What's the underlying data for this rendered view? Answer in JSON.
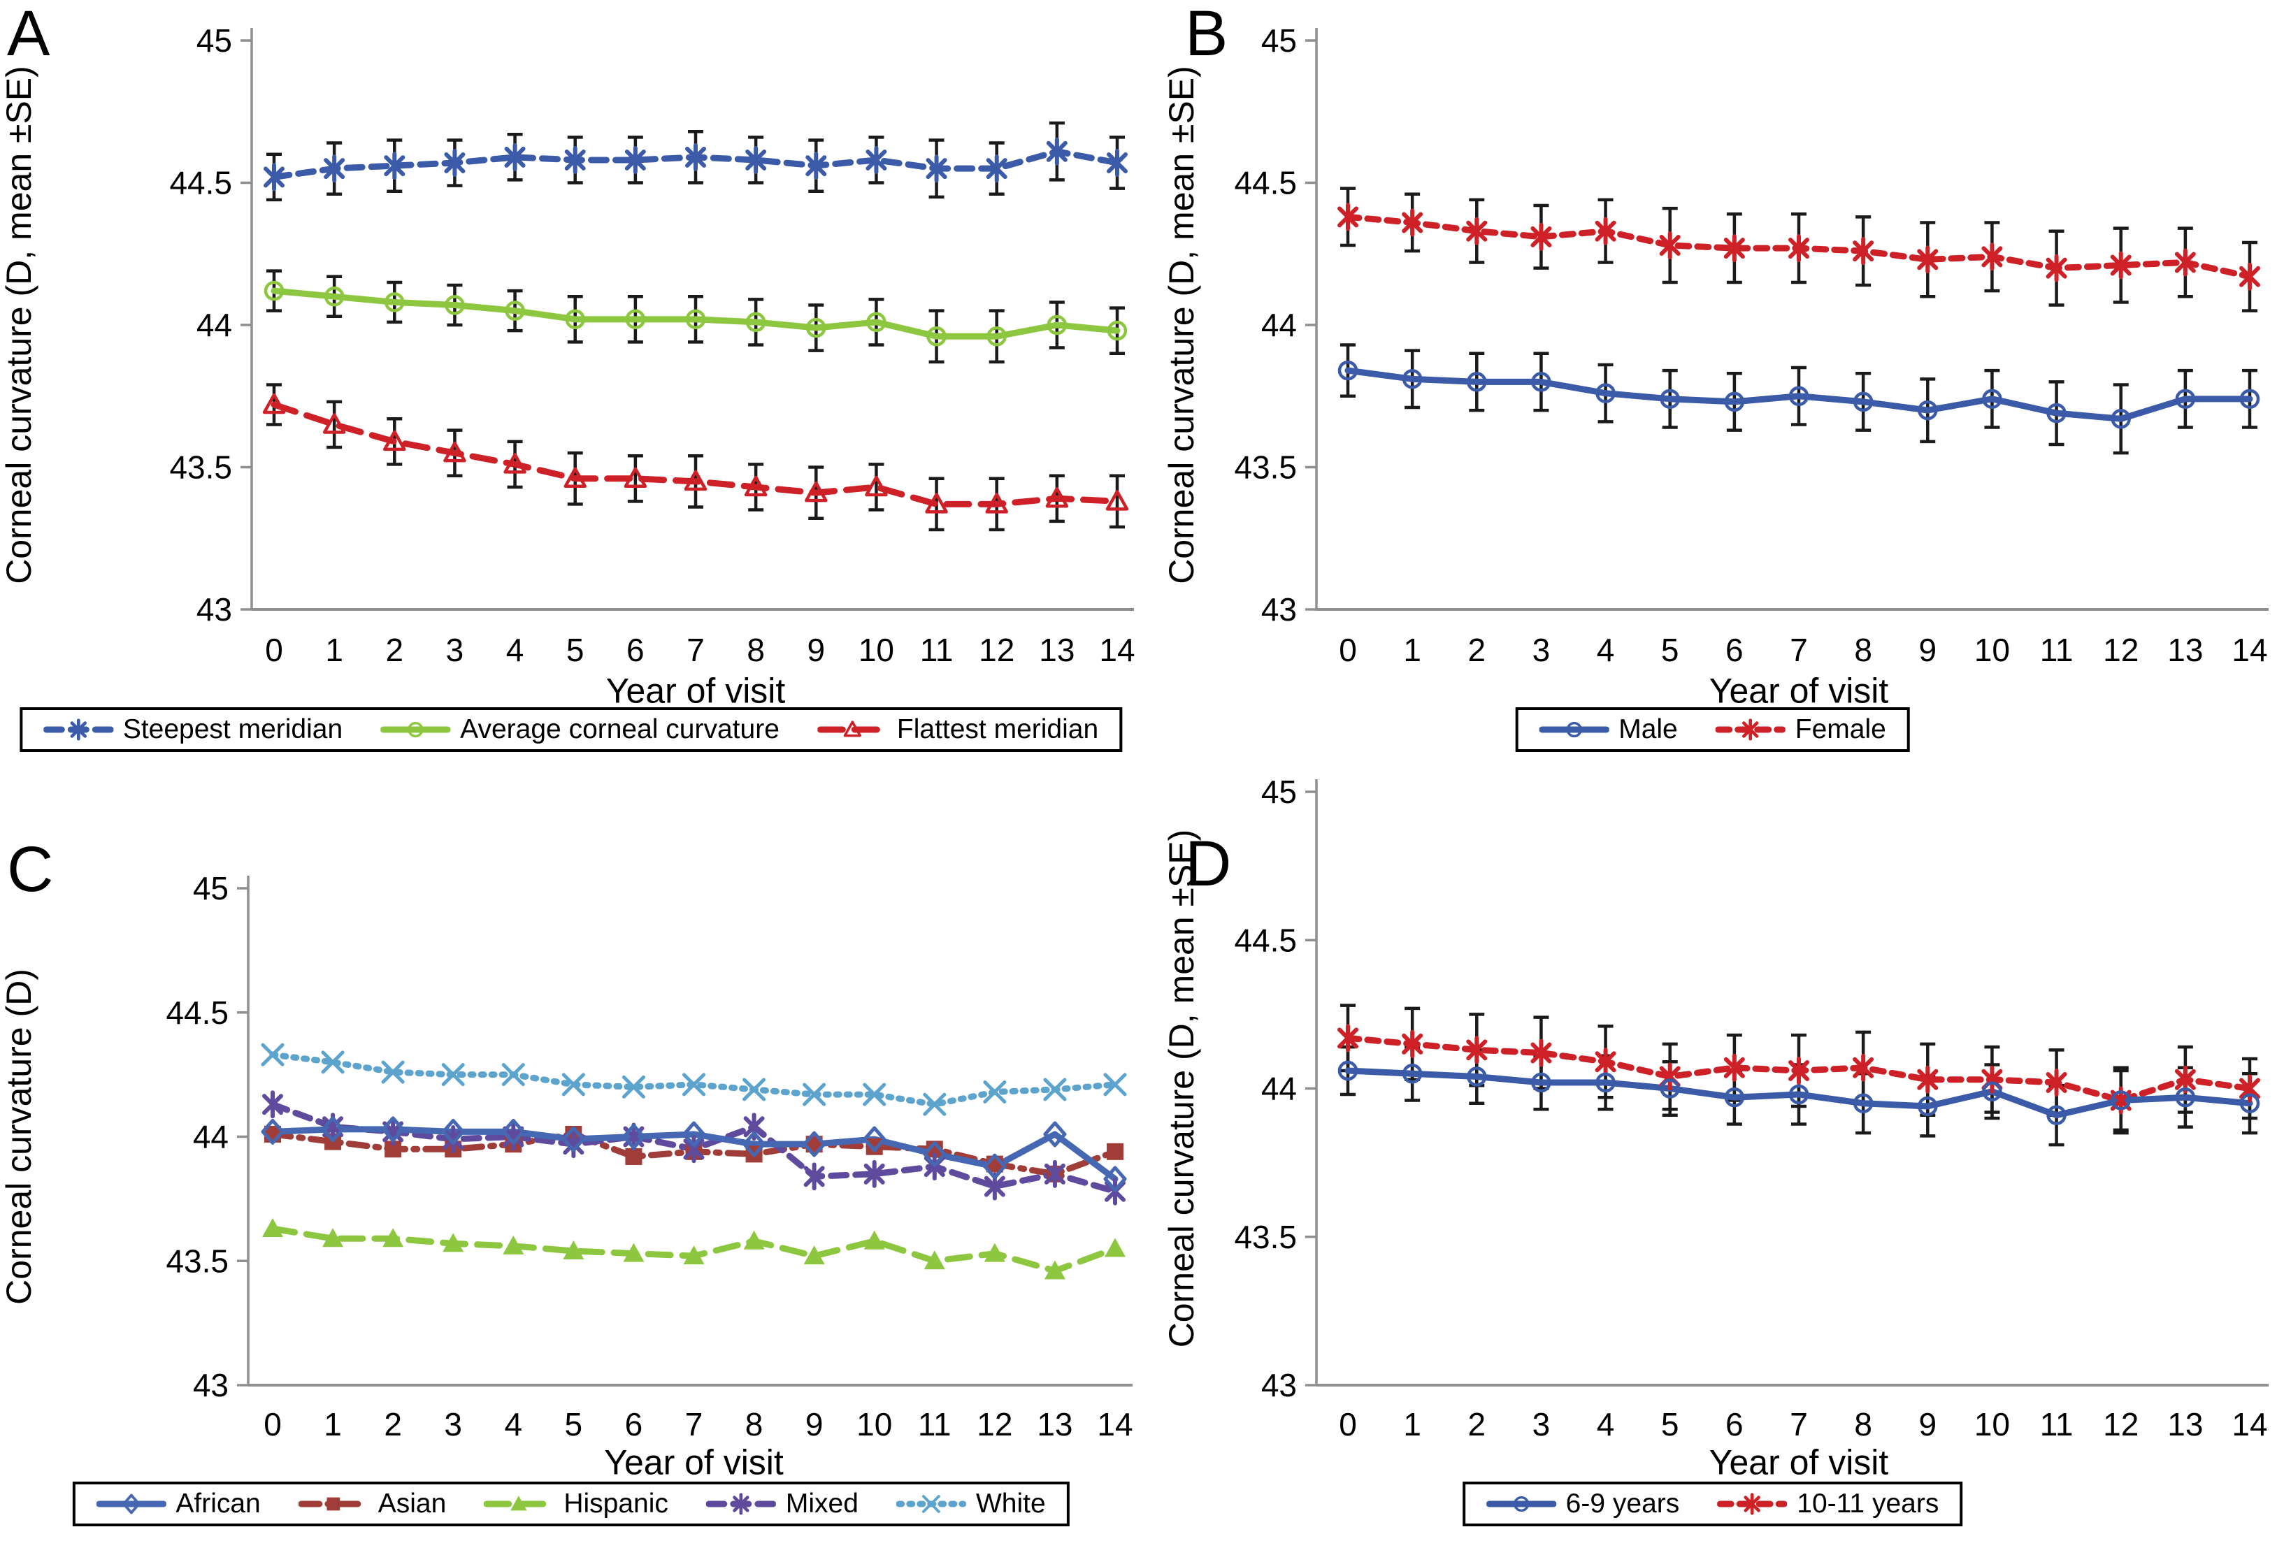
{
  "figure_title": "",
  "chart_data": [
    {
      "type": "line",
      "panel_label": "A",
      "xlabel": "Year of visit",
      "ylabel": "Corneal curvature (D, mean ±SE)",
      "x": [
        0,
        1,
        2,
        3,
        4,
        5,
        6,
        7,
        8,
        9,
        10,
        11,
        12,
        13,
        14
      ],
      "ylim": [
        43,
        45
      ],
      "yticks": [
        43,
        43.5,
        44,
        44.5,
        45
      ],
      "grid": false,
      "legend_position": "bottom",
      "error_bars": true,
      "series": [
        {
          "name": "Steepest meridian",
          "color": "#3B5BA9",
          "line_style": "dashed",
          "marker": "asterisk",
          "values": [
            44.52,
            44.55,
            44.56,
            44.57,
            44.59,
            44.58,
            44.58,
            44.59,
            44.58,
            44.56,
            44.58,
            44.55,
            44.55,
            44.61,
            44.57
          ],
          "se": [
            0.08,
            0.09,
            0.09,
            0.08,
            0.08,
            0.08,
            0.08,
            0.09,
            0.08,
            0.09,
            0.08,
            0.1,
            0.09,
            0.1,
            0.09
          ]
        },
        {
          "name": "Average corneal curvature",
          "color": "#8DC63F",
          "line_style": "solid",
          "marker": "circle-open",
          "values": [
            44.12,
            44.1,
            44.08,
            44.07,
            44.05,
            44.02,
            44.02,
            44.02,
            44.01,
            43.99,
            44.01,
            43.96,
            43.96,
            44.0,
            43.98
          ],
          "se": [
            0.07,
            0.07,
            0.07,
            0.07,
            0.07,
            0.08,
            0.08,
            0.08,
            0.08,
            0.08,
            0.08,
            0.09,
            0.09,
            0.08,
            0.08
          ]
        },
        {
          "name": "Flattest meridian",
          "color": "#CE2127",
          "line_style": "longdash",
          "marker": "triangle-open",
          "values": [
            43.72,
            43.65,
            43.59,
            43.55,
            43.51,
            43.46,
            43.46,
            43.45,
            43.43,
            43.41,
            43.43,
            43.37,
            43.37,
            43.39,
            43.38
          ],
          "se": [
            0.07,
            0.08,
            0.08,
            0.08,
            0.08,
            0.09,
            0.08,
            0.09,
            0.08,
            0.09,
            0.08,
            0.09,
            0.09,
            0.08,
            0.09
          ]
        }
      ]
    },
    {
      "type": "line",
      "panel_label": "B",
      "xlabel": "Year of visit",
      "ylabel": "Corneal curvature (D, mean ±SE)",
      "x": [
        0,
        1,
        2,
        3,
        4,
        5,
        6,
        7,
        8,
        9,
        10,
        11,
        12,
        13,
        14
      ],
      "ylim": [
        43,
        45
      ],
      "yticks": [
        43,
        43.5,
        44,
        44.5,
        45
      ],
      "grid": false,
      "legend_position": "bottom",
      "error_bars": true,
      "series": [
        {
          "name": "Male",
          "color": "#3B5BA9",
          "line_style": "solid",
          "marker": "circle-open",
          "values": [
            43.84,
            43.81,
            43.8,
            43.8,
            43.76,
            43.74,
            43.73,
            43.75,
            43.73,
            43.7,
            43.74,
            43.69,
            43.67,
            43.74,
            43.74
          ],
          "se": [
            0.09,
            0.1,
            0.1,
            0.1,
            0.1,
            0.1,
            0.1,
            0.1,
            0.1,
            0.11,
            0.1,
            0.11,
            0.12,
            0.1,
            0.1
          ]
        },
        {
          "name": "Female",
          "color": "#CE2127",
          "line_style": "shortdash",
          "marker": "asterisk",
          "values": [
            44.38,
            44.36,
            44.33,
            44.31,
            44.33,
            44.28,
            44.27,
            44.27,
            44.26,
            44.23,
            44.24,
            44.2,
            44.21,
            44.22,
            44.17
          ],
          "se": [
            0.1,
            0.1,
            0.11,
            0.11,
            0.11,
            0.13,
            0.12,
            0.12,
            0.12,
            0.13,
            0.12,
            0.13,
            0.13,
            0.12,
            0.12
          ]
        }
      ]
    },
    {
      "type": "line",
      "panel_label": "C",
      "xlabel": "Year of visit",
      "ylabel": "Corneal curvature (D)",
      "x": [
        0,
        1,
        2,
        3,
        4,
        5,
        6,
        7,
        8,
        9,
        10,
        11,
        12,
        13,
        14
      ],
      "ylim": [
        43,
        45
      ],
      "yticks": [
        43,
        43.5,
        44,
        44.5,
        45
      ],
      "grid": false,
      "legend_position": "bottom",
      "error_bars": false,
      "series": [
        {
          "name": "African",
          "color": "#4668B2",
          "line_style": "solid",
          "marker": "diamond-open",
          "values": [
            44.02,
            44.03,
            44.03,
            44.02,
            44.02,
            43.99,
            44.0,
            44.01,
            43.97,
            43.97,
            43.99,
            43.93,
            43.88,
            44.01,
            43.83
          ]
        },
        {
          "name": "Asian",
          "color": "#A03D38",
          "line_style": "dashdot",
          "marker": "square-filled",
          "values": [
            44.01,
            43.98,
            43.95,
            43.95,
            43.97,
            44.01,
            43.92,
            43.94,
            43.93,
            43.97,
            43.96,
            43.95,
            43.89,
            43.85,
            43.94
          ]
        },
        {
          "name": "Hispanic",
          "color": "#8DC63F",
          "line_style": "longdash",
          "marker": "triangle-filled",
          "values": [
            43.63,
            43.59,
            43.59,
            43.57,
            43.56,
            43.54,
            43.53,
            43.52,
            43.58,
            43.52,
            43.58,
            43.5,
            43.53,
            43.46,
            43.55
          ]
        },
        {
          "name": "Mixed",
          "color": "#5E4B9E",
          "line_style": "dashed",
          "marker": "asterisk",
          "values": [
            44.13,
            44.04,
            44.02,
            43.99,
            44.0,
            43.97,
            44.0,
            43.95,
            44.04,
            43.84,
            43.85,
            43.88,
            43.8,
            43.85,
            43.78
          ]
        },
        {
          "name": "White",
          "color": "#5CA3CD",
          "line_style": "dotted",
          "marker": "x",
          "values": [
            44.33,
            44.3,
            44.26,
            44.25,
            44.25,
            44.21,
            44.2,
            44.21,
            44.19,
            44.17,
            44.17,
            44.13,
            44.18,
            44.19,
            44.21
          ]
        }
      ]
    },
    {
      "type": "line",
      "panel_label": "D",
      "xlabel": "Year of visit",
      "ylabel": "Corneal curvature (D, mean ±SE)",
      "x": [
        0,
        1,
        2,
        3,
        4,
        5,
        6,
        7,
        8,
        9,
        10,
        11,
        12,
        13,
        14
      ],
      "ylim": [
        43,
        45
      ],
      "yticks": [
        43,
        43.5,
        44,
        44.5,
        45
      ],
      "grid": false,
      "legend_position": "bottom",
      "error_bars": true,
      "series": [
        {
          "name": "6-9 years",
          "color": "#3B5BA9",
          "line_style": "solid",
          "marker": "circle-open",
          "values": [
            44.06,
            44.05,
            44.04,
            44.02,
            44.02,
            44.0,
            43.97,
            43.98,
            43.95,
            43.94,
            43.99,
            43.91,
            43.96,
            43.97,
            43.95
          ],
          "se": [
            0.08,
            0.09,
            0.09,
            0.09,
            0.09,
            0.09,
            0.09,
            0.1,
            0.1,
            0.1,
            0.09,
            0.1,
            0.11,
            0.1,
            0.1
          ]
        },
        {
          "name": "10-11 years",
          "color": "#CE2127",
          "line_style": "shortdash",
          "marker": "asterisk",
          "values": [
            44.17,
            44.15,
            44.13,
            44.12,
            44.09,
            44.04,
            44.07,
            44.06,
            44.07,
            44.03,
            44.03,
            44.02,
            43.96,
            44.03,
            44.0
          ],
          "se": [
            0.11,
            0.12,
            0.12,
            0.12,
            0.12,
            0.11,
            0.11,
            0.12,
            0.12,
            0.12,
            0.11,
            0.11,
            0.1,
            0.11,
            0.1
          ]
        }
      ]
    }
  ],
  "colors": {
    "axis_gray": "#8f8f8f",
    "error_bar": "#1a1a1a",
    "text": "#000000",
    "background": "#ffffff"
  }
}
